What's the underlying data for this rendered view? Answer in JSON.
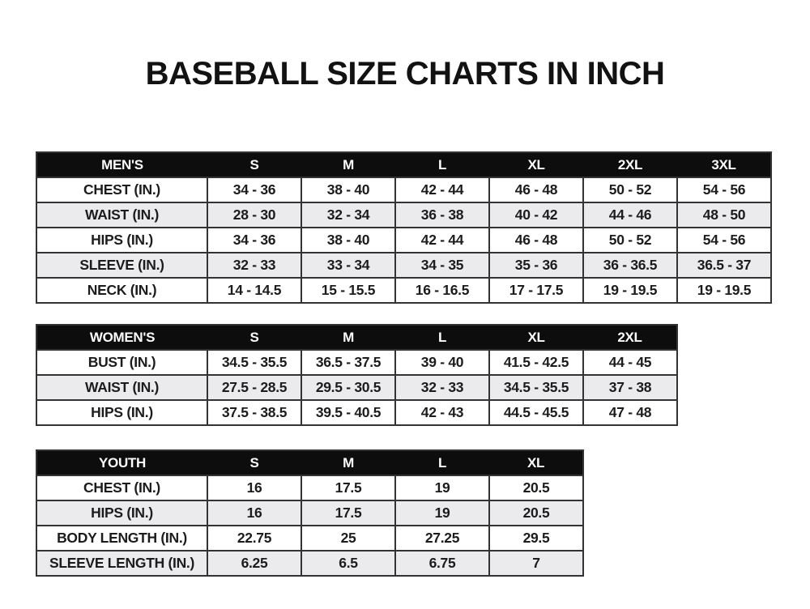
{
  "title": "BASEBALL SIZE CHARTS IN INCH",
  "colors": {
    "background": "#ffffff",
    "header_bg": "#0d0d0d",
    "header_text": "#fdfdfd",
    "row_alt_bg": "#ebebee",
    "border": "#333333",
    "text": "#1c1c1c"
  },
  "chart_data": [
    {
      "type": "table",
      "id": "mens",
      "columns": [
        "MEN'S",
        "S",
        "M",
        "L",
        "XL",
        "2XL",
        "3XL"
      ],
      "rows": [
        [
          "CHEST (IN.)",
          "34 - 36",
          "38 - 40",
          "42 - 44",
          "46 - 48",
          "50 - 52",
          "54 - 56"
        ],
        [
          "WAIST (IN.)",
          "28 - 30",
          "32 - 34",
          "36 - 38",
          "40 - 42",
          "44 - 46",
          "48 - 50"
        ],
        [
          "HIPS (IN.)",
          "34 - 36",
          "38 - 40",
          "42 - 44",
          "46 - 48",
          "50 - 52",
          "54 - 56"
        ],
        [
          "SLEEVE (IN.)",
          "32 - 33",
          "33 - 34",
          "34 - 35",
          "35 - 36",
          "36 - 36.5",
          "36.5 - 37"
        ],
        [
          "NECK (IN.)",
          "14 - 14.5",
          "15 - 15.5",
          "16 - 16.5",
          "17 - 17.5",
          "19 - 19.5",
          "19 - 19.5"
        ]
      ]
    },
    {
      "type": "table",
      "id": "womens",
      "columns": [
        "WOMEN'S",
        "S",
        "M",
        "L",
        "XL",
        "2XL"
      ],
      "rows": [
        [
          "BUST (IN.)",
          "34.5 - 35.5",
          "36.5 - 37.5",
          "39 - 40",
          "41.5 - 42.5",
          "44 - 45"
        ],
        [
          "WAIST (IN.)",
          "27.5 - 28.5",
          "29.5 - 30.5",
          "32 - 33",
          "34.5 - 35.5",
          "37 - 38"
        ],
        [
          "HIPS (IN.)",
          "37.5 - 38.5",
          "39.5 - 40.5",
          "42 - 43",
          "44.5 - 45.5",
          "47 - 48"
        ]
      ]
    },
    {
      "type": "table",
      "id": "youth",
      "columns": [
        "YOUTH",
        "S",
        "M",
        "L",
        "XL"
      ],
      "rows": [
        [
          "CHEST (IN.)",
          "16",
          "17.5",
          "19",
          "20.5"
        ],
        [
          "HIPS (IN.)",
          "16",
          "17.5",
          "19",
          "20.5"
        ],
        [
          "BODY LENGTH (IN.)",
          "22.75",
          "25",
          "27.25",
          "29.5"
        ],
        [
          "SLEEVE LENGTH (IN.)",
          "6.25",
          "6.5",
          "6.75",
          "7"
        ]
      ]
    }
  ]
}
